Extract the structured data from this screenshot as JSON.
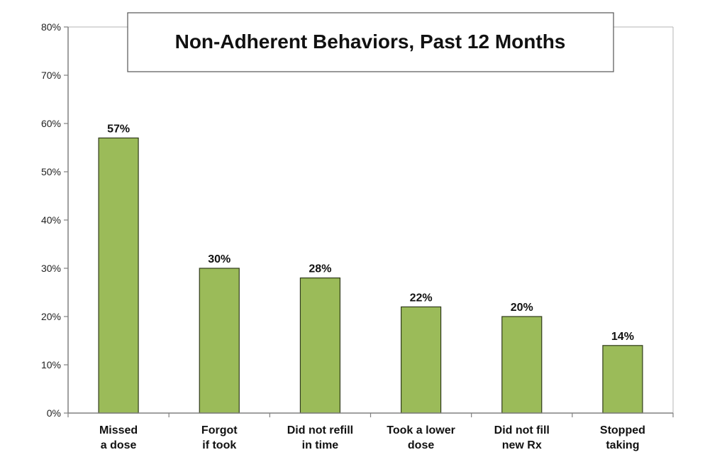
{
  "chart_data": {
    "type": "bar",
    "title": "Non-Adherent Behaviors, Past 12 Months",
    "categories": [
      [
        "Missed",
        "a dose"
      ],
      [
        "Forgot",
        "if took"
      ],
      [
        "Did not refill",
        "in time"
      ],
      [
        "Took a lower",
        "dose"
      ],
      [
        "Did not fill",
        "new Rx"
      ],
      [
        "Stopped",
        "taking"
      ]
    ],
    "values": [
      57,
      30,
      28,
      22,
      20,
      14
    ],
    "value_labels": [
      "57%",
      "30%",
      "28%",
      "22%",
      "20%",
      "14%"
    ],
    "yticks": [
      0,
      10,
      20,
      30,
      40,
      50,
      60,
      70,
      80
    ],
    "ytick_labels": [
      "0%",
      "10%",
      "20%",
      "30%",
      "40%",
      "50%",
      "60%",
      "70%",
      "80%"
    ],
    "ylim": [
      0,
      80
    ],
    "xlabel": "",
    "ylabel": "",
    "grid": false,
    "legend": "none",
    "colors": {
      "bar_fill": "#9bbb59",
      "bar_stroke": "#2f3a1a"
    }
  }
}
